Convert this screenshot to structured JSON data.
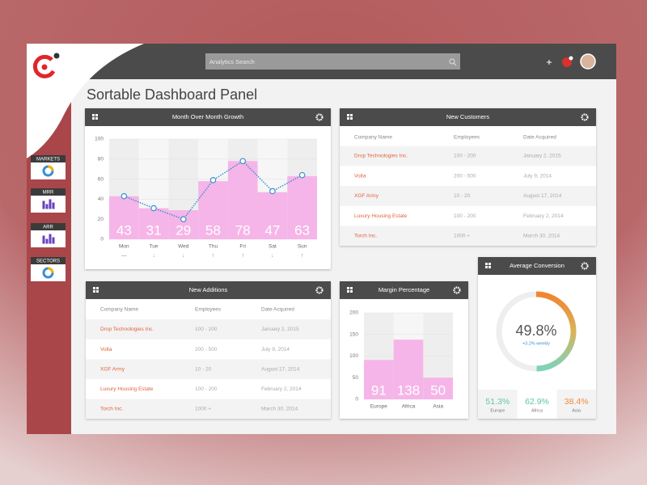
{
  "search": {
    "placeholder": "Analytics Search"
  },
  "sidebar": {
    "items": [
      "MARKETS",
      "MRR",
      "ARR",
      "SECTORS"
    ]
  },
  "page_title": "Sortable Dashboard Panel",
  "growth": {
    "type": "bar",
    "title": "Month Over Month Growth",
    "categories": [
      "Mon",
      "Tue",
      "Wed",
      "Thu",
      "Fri",
      "Sat",
      "Sun"
    ],
    "trends": [
      "—",
      "↓",
      "↓",
      "↑",
      "↑",
      "↓",
      "↑"
    ],
    "trend_colors": [
      "#888888",
      "#f08a3c",
      "#f08a3c",
      "#3a8fd0",
      "#3a8fd0",
      "#f08a3c",
      "#3a8fd0"
    ],
    "series": [
      {
        "type": "bar",
        "color": "#f6b5e8",
        "values": [
          43,
          31,
          29,
          58,
          78,
          47,
          63
        ]
      },
      {
        "type": "line",
        "color": "#3a8fd0",
        "values": [
          43,
          31,
          20,
          59,
          78,
          48,
          64
        ]
      }
    ],
    "ylim": [
      0,
      100
    ],
    "yticks": [
      0,
      20,
      40,
      60,
      80,
      100
    ],
    "grid": true
  },
  "new_customers": {
    "title": "New Customers",
    "columns": [
      "Company Name",
      "Employees",
      "Date Acquired"
    ],
    "rows": [
      [
        "Drop Technologies Inc.",
        "100 - 200",
        "January 2, 2015"
      ],
      [
        "Volta",
        "200 - 500",
        "July 9, 2014"
      ],
      [
        "XGF Army",
        "10 - 20",
        "August 17, 2014"
      ],
      [
        "Luxury Housing Estate",
        "100 - 200",
        "February 2, 2014"
      ],
      [
        "Torch Inc.",
        "1000 +",
        "March 30, 2014"
      ]
    ]
  },
  "new_additions": {
    "title": "New Additions",
    "columns": [
      "Company Name",
      "Employees",
      "Date Acquired"
    ],
    "rows": [
      [
        "Drop Technologies Inc.",
        "100 - 200",
        "January 2, 2015"
      ],
      [
        "Volta",
        "200 - 500",
        "July 9, 2014"
      ],
      [
        "XGF Army",
        "10 - 20",
        "August 17, 2014"
      ],
      [
        "Luxury Housing Estate",
        "100 - 200",
        "February 2, 2014"
      ],
      [
        "Torch Inc.",
        "1000 +",
        "March 30, 2014"
      ]
    ]
  },
  "margin": {
    "type": "bar",
    "title": "Margin Percentage",
    "categories": [
      "Europe",
      "Africa",
      "Asia"
    ],
    "values": [
      91,
      138,
      50
    ],
    "color": "#f6b5e8",
    "ylim": [
      0,
      200
    ],
    "yticks": [
      0,
      50,
      100,
      150,
      200
    ],
    "grid": true
  },
  "conversion": {
    "type": "donut",
    "title": "Average Conversion",
    "value": 49.8,
    "value_label": "49.8%",
    "change": "+3.2% weekly",
    "regions": [
      {
        "name": "Europe",
        "value": 51.3,
        "label": "51.3%",
        "color": "#5cc6a8"
      },
      {
        "name": "Africa",
        "value": 62.9,
        "label": "62.9%",
        "color": "#5cc6a8"
      },
      {
        "name": "Asia",
        "value": 38.4,
        "label": "38.4%",
        "color": "#f08a3c"
      }
    ]
  }
}
